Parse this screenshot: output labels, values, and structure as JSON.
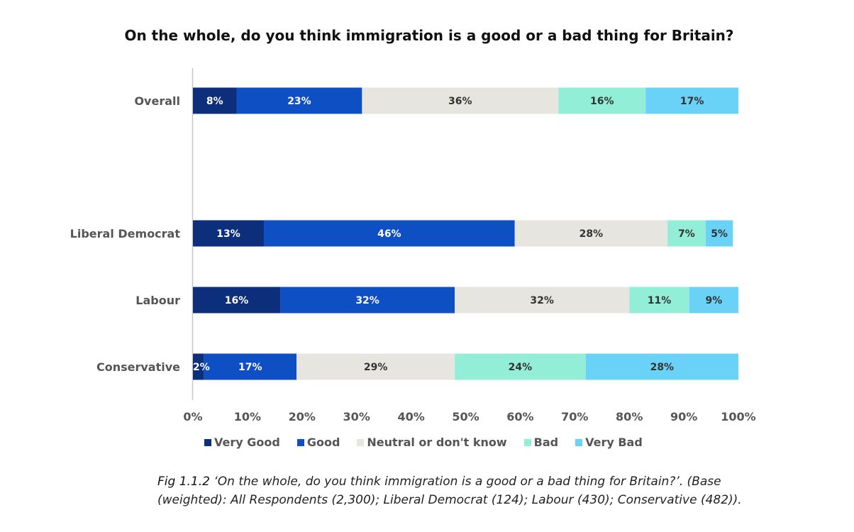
{
  "chart_data": {
    "type": "bar",
    "orientation": "horizontal",
    "stacked": true,
    "title": "On the whole, do you think immigration is a good or a bad thing for Britain?",
    "categories": [
      "Overall",
      "Liberal Democrat",
      "Labour",
      "Conservative"
    ],
    "series": [
      {
        "name": "Very Good",
        "color": "#0d2e7b",
        "values": [
          8,
          13,
          16,
          2
        ]
      },
      {
        "name": "Good",
        "color": "#0f4fc4",
        "values": [
          23,
          46,
          32,
          17
        ]
      },
      {
        "name": "Neutral or don't know",
        "color": "#e6e5e0",
        "values": [
          36,
          28,
          32,
          29
        ]
      },
      {
        "name": "Bad",
        "color": "#93eed8",
        "values": [
          16,
          7,
          11,
          24
        ]
      },
      {
        "name": "Very Bad",
        "color": "#6ad1f7",
        "values": [
          17,
          5,
          9,
          28
        ]
      }
    ],
    "data_labels": [
      [
        "8%",
        "23%",
        "36%",
        "16%",
        "17%"
      ],
      [
        "13%",
        "46%",
        "28%",
        "7%",
        "5%"
      ],
      [
        "16%",
        "32%",
        "32%",
        "11%",
        "9%"
      ],
      [
        "2%",
        "17%",
        "29%",
        "24%",
        "28%"
      ]
    ],
    "label_colors": [
      "#ffffff",
      "#ffffff",
      "#333333",
      "#333333",
      "#333333"
    ],
    "xlim": [
      0,
      100
    ],
    "x_ticks": [
      "0%",
      "10%",
      "20%",
      "30%",
      "40%",
      "50%",
      "60%",
      "70%",
      "80%",
      "90%",
      "100%"
    ],
    "legend_position": "bottom",
    "grid": false
  },
  "caption": {
    "fig_ref": "Fig 1.1.2",
    "line1": " ‘On the whole, do you think immigration is a good or a bad thing for Britain?’. (Base",
    "line2": "(weighted): All Respondents (2,300); Liberal Democrat (124); Labour (430); Conservative (482))."
  }
}
